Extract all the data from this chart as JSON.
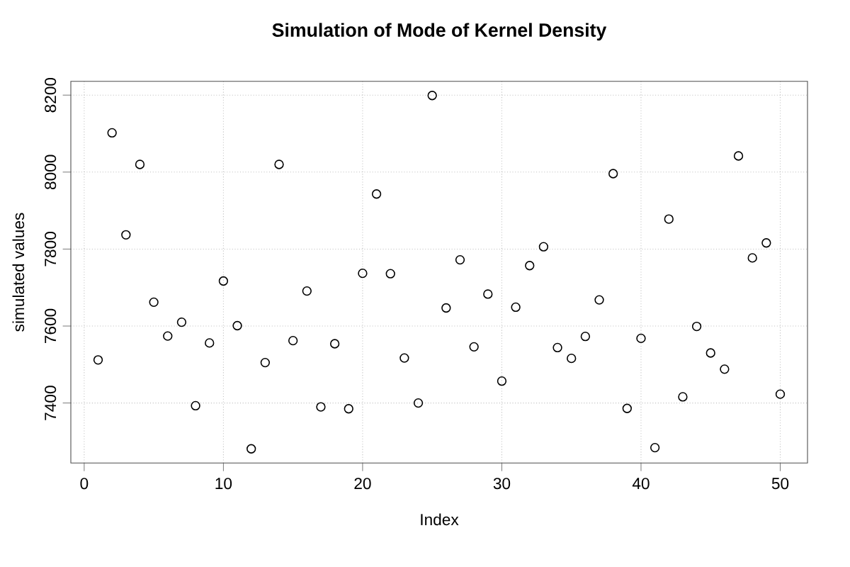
{
  "chart_data": {
    "type": "scatter",
    "title": "Simulation of Mode of Kernel Density",
    "xlabel": "Index",
    "ylabel": "simulated values",
    "x": [
      1,
      2,
      3,
      4,
      5,
      6,
      7,
      8,
      9,
      10,
      11,
      12,
      13,
      14,
      15,
      16,
      17,
      18,
      19,
      20,
      21,
      22,
      23,
      24,
      25,
      26,
      27,
      28,
      29,
      30,
      31,
      32,
      33,
      34,
      35,
      36,
      37,
      38,
      39,
      40,
      41,
      42,
      43,
      44,
      45,
      46,
      47,
      48,
      49,
      50
    ],
    "values": [
      7512,
      8102,
      7837,
      8020,
      7662,
      7574,
      7610,
      7393,
      7556,
      7717,
      7601,
      7281,
      7505,
      8020,
      7562,
      7691,
      7390,
      7554,
      7385,
      7737,
      7943,
      7736,
      7517,
      7400,
      8199,
      7647,
      7772,
      7546,
      7683,
      7457,
      7649,
      7757,
      7806,
      7544,
      7516,
      7573,
      7668,
      7996,
      7386,
      7568,
      7284,
      7878,
      7416,
      7599,
      7530,
      7488,
      8042,
      7777,
      7816,
      7423
    ],
    "color": "#000000",
    "marker": "circle",
    "grid": true,
    "xlim": [
      -0.96,
      51.96
    ],
    "ylim": [
      7244,
      8236
    ],
    "xticks": [
      0,
      10,
      20,
      30,
      40,
      50
    ],
    "yticks": [
      7400,
      7600,
      7800,
      8000,
      8200
    ]
  }
}
